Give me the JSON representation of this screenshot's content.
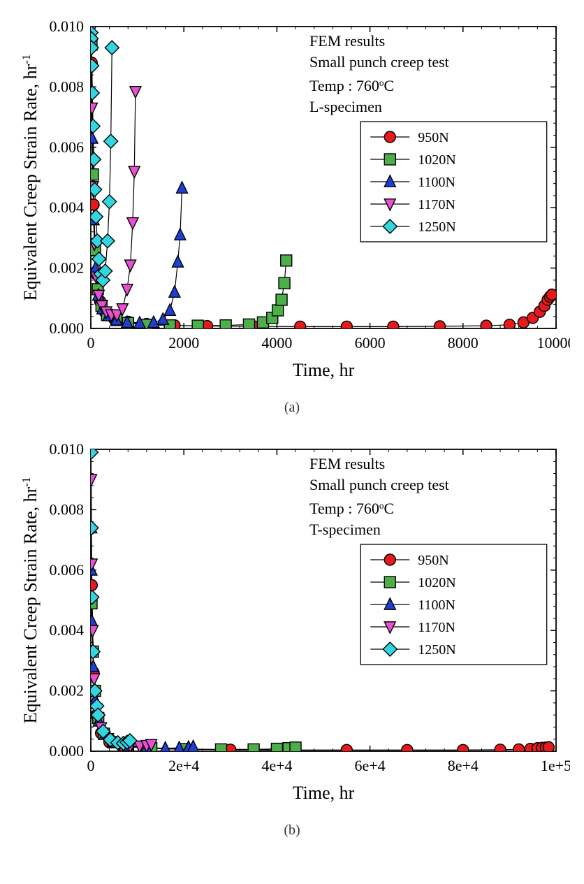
{
  "common": {
    "xlabel": "Time, hr",
    "ylabel": "Equivalent Creep Strain Rate, hr",
    "ylabel_sup": "-1",
    "background_color": "#ffffff",
    "axis_color": "#000000",
    "text_color": "#000000",
    "label_fontsize": 26,
    "tick_fontsize": 22,
    "annot_fontsize": 22,
    "legend_fontsize": 20,
    "line_color": "#000000",
    "line_width": 1.2,
    "marker_stroke": "#000000",
    "marker_stroke_width": 1.4,
    "marker_size": 8,
    "legend_border": "#000000",
    "ylim": [
      0,
      0.01
    ],
    "ytick_step": 0.002,
    "yticks": [
      "0.000",
      "0.002",
      "0.004",
      "0.006",
      "0.008",
      "0.010"
    ],
    "annot_line1": "FEM results",
    "annot_line2": "Small punch creep test",
    "annot_line3_pre": "Temp : 760",
    "annot_line3_deg": "o",
    "annot_line3_suf": "C",
    "series_meta": [
      {
        "label": "950N",
        "color": "#e41a1c",
        "marker": "circle"
      },
      {
        "label": "1020N",
        "color": "#4daf4a",
        "marker": "square"
      },
      {
        "label": "1100N",
        "color": "#1f3fd4",
        "marker": "triangle-up"
      },
      {
        "label": "1170N",
        "color": "#e84fd1",
        "marker": "triangle-down"
      },
      {
        "label": "1250N",
        "color": "#33d6e0",
        "marker": "diamond"
      }
    ]
  },
  "chart_a": {
    "caption": "(a)",
    "annot_line4": "L-specimen",
    "xlim": [
      0,
      10000
    ],
    "xtick_step": 2000,
    "xticks": [
      "0",
      "2000",
      "4000",
      "6000",
      "8000",
      "10000"
    ],
    "series": {
      "950N": [
        [
          20,
          0.0088
        ],
        [
          60,
          0.0041
        ],
        [
          120,
          0.0018
        ],
        [
          200,
          0.0009
        ],
        [
          300,
          0.00055
        ],
        [
          500,
          0.00032
        ],
        [
          800,
          0.00022
        ],
        [
          1200,
          0.00015
        ],
        [
          1800,
          0.0001
        ],
        [
          2500,
          8e-05
        ],
        [
          3500,
          7e-05
        ],
        [
          4500,
          6e-05
        ],
        [
          5500,
          6e-05
        ],
        [
          6500,
          6e-05
        ],
        [
          7500,
          7e-05
        ],
        [
          8500,
          9e-05
        ],
        [
          9000,
          0.00012
        ],
        [
          9300,
          0.0002
        ],
        [
          9500,
          0.00035
        ],
        [
          9650,
          0.00055
        ],
        [
          9750,
          0.00075
        ],
        [
          9820,
          0.00095
        ],
        [
          9870,
          0.00105
        ],
        [
          9910,
          0.00112
        ]
      ],
      "1020N": [
        [
          15,
          0.0094
        ],
        [
          45,
          0.0051
        ],
        [
          90,
          0.0026
        ],
        [
          150,
          0.0013
        ],
        [
          230,
          0.00075
        ],
        [
          350,
          0.00045
        ],
        [
          550,
          0.00028
        ],
        [
          800,
          0.00018
        ],
        [
          1200,
          0.00012
        ],
        [
          1700,
          0.0001
        ],
        [
          2300,
          9e-05
        ],
        [
          2900,
          0.0001
        ],
        [
          3400,
          0.00013
        ],
        [
          3700,
          0.0002
        ],
        [
          3900,
          0.00035
        ],
        [
          4020,
          0.0006
        ],
        [
          4100,
          0.00095
        ],
        [
          4160,
          0.0015
        ],
        [
          4200,
          0.00225
        ]
      ],
      "1100N": [
        [
          10,
          0.0098
        ],
        [
          30,
          0.0063
        ],
        [
          60,
          0.0036
        ],
        [
          100,
          0.002
        ],
        [
          160,
          0.0011
        ],
        [
          250,
          0.00065
        ],
        [
          380,
          0.00042
        ],
        [
          550,
          0.00028
        ],
        [
          780,
          0.0002
        ],
        [
          1050,
          0.00018
        ],
        [
          1350,
          0.0002
        ],
        [
          1550,
          0.0003
        ],
        [
          1700,
          0.0006
        ],
        [
          1800,
          0.0012
        ],
        [
          1870,
          0.0022
        ],
        [
          1920,
          0.0031
        ],
        [
          1960,
          0.00465
        ]
      ],
      "1170N": [
        [
          8,
          0.0099
        ],
        [
          22,
          0.0073
        ],
        [
          45,
          0.0047
        ],
        [
          75,
          0.0028
        ],
        [
          115,
          0.0017
        ],
        [
          170,
          0.0011
        ],
        [
          240,
          0.00075
        ],
        [
          330,
          0.00055
        ],
        [
          440,
          0.00045
        ],
        [
          560,
          0.00045
        ],
        [
          680,
          0.00065
        ],
        [
          780,
          0.0013
        ],
        [
          850,
          0.0021
        ],
        [
          900,
          0.0035
        ],
        [
          935,
          0.0052
        ],
        [
          960,
          0.00785
        ]
      ],
      "1250N": [
        [
          5,
          0.0098
        ],
        [
          9,
          0.0096
        ],
        [
          15,
          0.0093
        ],
        [
          24,
          0.0087
        ],
        [
          34,
          0.0078
        ],
        [
          48,
          0.0067
        ],
        [
          65,
          0.0056
        ],
        [
          85,
          0.0046
        ],
        [
          110,
          0.0037
        ],
        [
          140,
          0.0029
        ],
        [
          175,
          0.0023
        ],
        [
          215,
          0.0018
        ],
        [
          260,
          0.0016
        ],
        [
          310,
          0.0019
        ],
        [
          360,
          0.0029
        ],
        [
          400,
          0.0042
        ],
        [
          430,
          0.0062
        ],
        [
          455,
          0.0093
        ]
      ]
    }
  },
  "chart_b": {
    "caption": "(b)",
    "annot_line4": "T-specimen",
    "xlim": [
      0,
      100000
    ],
    "xtick_step": 20000,
    "xticks": [
      "0",
      "2e+4",
      "4e+4",
      "6e+4",
      "8e+4",
      "1e+5"
    ],
    "series": {
      "950N": [
        [
          200,
          0.0055
        ],
        [
          600,
          0.0026
        ],
        [
          1200,
          0.0012
        ],
        [
          2200,
          0.0006
        ],
        [
          4000,
          0.0003
        ],
        [
          7000,
          0.00016
        ],
        [
          12000,
          0.0001
        ],
        [
          20000,
          6e-05
        ],
        [
          30000,
          5e-05
        ],
        [
          42000,
          4e-05
        ],
        [
          55000,
          4e-05
        ],
        [
          68000,
          4e-05
        ],
        [
          80000,
          4e-05
        ],
        [
          88000,
          5e-05
        ],
        [
          92000,
          6e-05
        ],
        [
          94500,
          8e-05
        ],
        [
          96000,
          0.0001
        ],
        [
          97000,
          0.00011
        ],
        [
          97800,
          0.00012
        ],
        [
          98400,
          0.00013
        ]
      ],
      "1020N": [
        [
          150,
          0.0049
        ],
        [
          450,
          0.0033
        ],
        [
          900,
          0.002
        ],
        [
          1600,
          0.0011
        ],
        [
          2800,
          0.00058
        ],
        [
          4800,
          0.0003
        ],
        [
          8000,
          0.00016
        ],
        [
          13000,
          0.0001
        ],
        [
          20000,
          7e-05
        ],
        [
          28000,
          6e-05
        ],
        [
          35000,
          6e-05
        ],
        [
          40000,
          8e-05
        ],
        [
          42500,
          0.0001
        ],
        [
          44000,
          0.00012
        ]
      ],
      "1100N": [
        [
          100,
          0.0074
        ],
        [
          130,
          0.006
        ],
        [
          260,
          0.0043
        ],
        [
          520,
          0.0028
        ],
        [
          950,
          0.0017
        ],
        [
          1700,
          0.001
        ],
        [
          3000,
          0.00056
        ],
        [
          5000,
          0.0003
        ],
        [
          8000,
          0.00018
        ],
        [
          12000,
          0.00012
        ],
        [
          16000,
          0.0001
        ],
        [
          19000,
          0.00011
        ],
        [
          21000,
          0.00013
        ],
        [
          22000,
          0.00015
        ]
      ],
      "1170N": [
        [
          70,
          0.009
        ],
        [
          180,
          0.0062
        ],
        [
          380,
          0.004
        ],
        [
          700,
          0.0024
        ],
        [
          1250,
          0.0014
        ],
        [
          2200,
          0.00078
        ],
        [
          3700,
          0.00042
        ],
        [
          6000,
          0.00024
        ],
        [
          8500,
          0.00018
        ],
        [
          10500,
          0.00017
        ],
        [
          12000,
          0.00019
        ],
        [
          13000,
          0.00022
        ]
      ],
      "1250N": [
        [
          50,
          0.0099
        ],
        [
          120,
          0.0074
        ],
        [
          250,
          0.0051
        ],
        [
          480,
          0.0033
        ],
        [
          880,
          0.002
        ],
        [
          1300,
          0.0015
        ],
        [
          1550,
          0.0012
        ],
        [
          2650,
          0.00066
        ],
        [
          4200,
          0.00038
        ],
        [
          5800,
          0.00028
        ],
        [
          7000,
          0.00026
        ],
        [
          7800,
          0.0003
        ],
        [
          8400,
          0.00035
        ]
      ]
    }
  }
}
